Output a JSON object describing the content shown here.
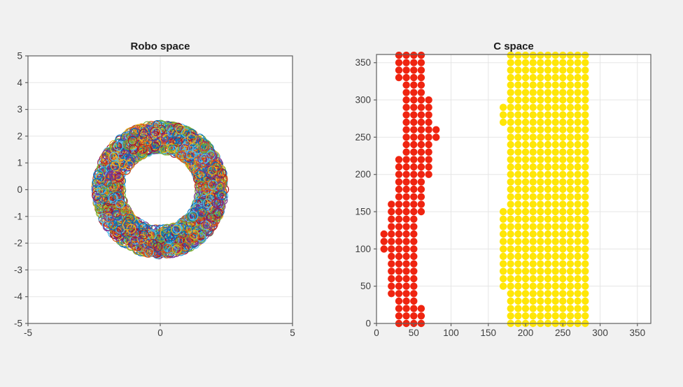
{
  "figure": {
    "background_color": "#f1f1f1",
    "plot_background_color": "#ffffff",
    "axis_color": "#5f5f5f",
    "grid_color": "#e5e5e5",
    "tick_label_color": "#3e3e3e",
    "title_color": "#1c1c1c"
  },
  "chart_data": [
    {
      "id": "robo_space",
      "type": "scatter",
      "title": "Robo space",
      "xlabel": "",
      "ylabel": "",
      "xlim": [
        -5,
        5
      ],
      "ylim": [
        -5,
        5
      ],
      "xticks": [
        -5,
        0,
        5
      ],
      "yticks": [
        -5,
        -4,
        -3,
        -2,
        -1,
        0,
        1,
        2,
        3,
        4,
        5
      ],
      "grid": true,
      "legend": "none",
      "description": "Dense ring (annulus) of overlapping unfilled circle markers in cycling MATLAB line colors, centered at origin",
      "annulus": {
        "center": [
          0,
          0
        ],
        "visual_inner_radius": 1.3,
        "visual_outer_radius": 2.6,
        "center_band_inner": 1.47,
        "center_band_outer": 2.43,
        "marker_radius_units": 0.165,
        "marker_count": 2600,
        "marker_style": "unfilled-circle",
        "palette": [
          "#0072BD",
          "#D95319",
          "#EDB120",
          "#7E2F8E",
          "#77AC30",
          "#4DBEEE",
          "#A2142F"
        ],
        "seed": 1337
      }
    },
    {
      "id": "c_space",
      "type": "scatter",
      "title": "C space",
      "xlabel": "",
      "ylabel": "",
      "xlim": [
        0,
        368
      ],
      "ylim": [
        0,
        361
      ],
      "xticks": [
        0,
        50,
        100,
        150,
        200,
        250,
        300,
        350
      ],
      "yticks": [
        0,
        50,
        100,
        150,
        200,
        250,
        300,
        350
      ],
      "grid": true,
      "legend": "none",
      "marker_radius_px": 5.2,
      "grid_step": 10,
      "series": [
        {
          "name": "obstacle-region-red",
          "color": "#EF2410",
          "marker_style": "filled-circle",
          "rows": [
            {
              "y": 0,
              "xmin": 30,
              "xmax": 60
            },
            {
              "y": 10,
              "xmin": 30,
              "xmax": 60
            },
            {
              "y": 20,
              "xmin": 30,
              "xmax": 60
            },
            {
              "y": 30,
              "xmin": 30,
              "xmax": 50
            },
            {
              "y": 40,
              "xmin": 20,
              "xmax": 50
            },
            {
              "y": 50,
              "xmin": 20,
              "xmax": 50
            },
            {
              "y": 60,
              "xmin": 20,
              "xmax": 50
            },
            {
              "y": 70,
              "xmin": 20,
              "xmax": 50
            },
            {
              "y": 80,
              "xmin": 20,
              "xmax": 50
            },
            {
              "y": 90,
              "xmin": 20,
              "xmax": 50
            },
            {
              "y": 100,
              "xmin": 10,
              "xmax": 50
            },
            {
              "y": 110,
              "xmin": 10,
              "xmax": 50
            },
            {
              "y": 120,
              "xmin": 10,
              "xmax": 50
            },
            {
              "y": 130,
              "xmin": 20,
              "xmax": 50
            },
            {
              "y": 140,
              "xmin": 20,
              "xmax": 50
            },
            {
              "y": 150,
              "xmin": 20,
              "xmax": 60
            },
            {
              "y": 160,
              "xmin": 20,
              "xmax": 60
            },
            {
              "y": 170,
              "xmin": 30,
              "xmax": 60
            },
            {
              "y": 180,
              "xmin": 30,
              "xmax": 60
            },
            {
              "y": 190,
              "xmin": 30,
              "xmax": 60
            },
            {
              "y": 200,
              "xmin": 30,
              "xmax": 70
            },
            {
              "y": 210,
              "xmin": 30,
              "xmax": 70
            },
            {
              "y": 220,
              "xmin": 30,
              "xmax": 70
            },
            {
              "y": 230,
              "xmin": 40,
              "xmax": 70
            },
            {
              "y": 240,
              "xmin": 40,
              "xmax": 70
            },
            {
              "y": 250,
              "xmin": 40,
              "xmax": 80
            },
            {
              "y": 260,
              "xmin": 40,
              "xmax": 80
            },
            {
              "y": 270,
              "xmin": 40,
              "xmax": 70
            },
            {
              "y": 280,
              "xmin": 40,
              "xmax": 70
            },
            {
              "y": 290,
              "xmin": 40,
              "xmax": 70
            },
            {
              "y": 300,
              "xmin": 40,
              "xmax": 70
            },
            {
              "y": 310,
              "xmin": 40,
              "xmax": 60
            },
            {
              "y": 320,
              "xmin": 40,
              "xmax": 60
            },
            {
              "y": 330,
              "xmin": 30,
              "xmax": 60
            },
            {
              "y": 340,
              "xmin": 30,
              "xmax": 60
            },
            {
              "y": 350,
              "xmin": 30,
              "xmax": 60
            },
            {
              "y": 360,
              "xmin": 30,
              "xmax": 60
            }
          ]
        },
        {
          "name": "free-region-yellow",
          "color": "#FFE607",
          "marker_style": "filled-circle",
          "rows": [
            {
              "y": 0,
              "xmin": 180,
              "xmax": 280
            },
            {
              "y": 10,
              "xmin": 180,
              "xmax": 280
            },
            {
              "y": 20,
              "xmin": 180,
              "xmax": 280
            },
            {
              "y": 30,
              "xmin": 180,
              "xmax": 280
            },
            {
              "y": 40,
              "xmin": 180,
              "xmax": 280
            },
            {
              "y": 50,
              "xmin": 170,
              "xmax": 280
            },
            {
              "y": 60,
              "xmin": 170,
              "xmax": 280
            },
            {
              "y": 70,
              "xmin": 170,
              "xmax": 280
            },
            {
              "y": 80,
              "xmin": 170,
              "xmax": 280
            },
            {
              "y": 90,
              "xmin": 170,
              "xmax": 280
            },
            {
              "y": 100,
              "xmin": 170,
              "xmax": 280
            },
            {
              "y": 110,
              "xmin": 170,
              "xmax": 280
            },
            {
              "y": 120,
              "xmin": 170,
              "xmax": 280
            },
            {
              "y": 130,
              "xmin": 170,
              "xmax": 280
            },
            {
              "y": 140,
              "xmin": 170,
              "xmax": 280
            },
            {
              "y": 150,
              "xmin": 170,
              "xmax": 280
            },
            {
              "y": 160,
              "xmin": 180,
              "xmax": 280
            },
            {
              "y": 170,
              "xmin": 180,
              "xmax": 280
            },
            {
              "y": 180,
              "xmin": 180,
              "xmax": 280
            },
            {
              "y": 190,
              "xmin": 180,
              "xmax": 280
            },
            {
              "y": 200,
              "xmin": 180,
              "xmax": 280
            },
            {
              "y": 210,
              "xmin": 180,
              "xmax": 280
            },
            {
              "y": 220,
              "xmin": 180,
              "xmax": 280
            },
            {
              "y": 230,
              "xmin": 180,
              "xmax": 280
            },
            {
              "y": 240,
              "xmin": 180,
              "xmax": 280
            },
            {
              "y": 250,
              "xmin": 180,
              "xmax": 280
            },
            {
              "y": 260,
              "xmin": 180,
              "xmax": 280
            },
            {
              "y": 270,
              "xmin": 170,
              "xmax": 280
            },
            {
              "y": 280,
              "xmin": 170,
              "xmax": 280
            },
            {
              "y": 290,
              "xmin": 170,
              "xmax": 280
            },
            {
              "y": 300,
              "xmin": 180,
              "xmax": 280
            },
            {
              "y": 310,
              "xmin": 180,
              "xmax": 280
            },
            {
              "y": 320,
              "xmin": 180,
              "xmax": 280
            },
            {
              "y": 330,
              "xmin": 180,
              "xmax": 280
            },
            {
              "y": 340,
              "xmin": 180,
              "xmax": 280
            },
            {
              "y": 350,
              "xmin": 180,
              "xmax": 280
            },
            {
              "y": 360,
              "xmin": 180,
              "xmax": 280
            }
          ]
        }
      ]
    }
  ]
}
